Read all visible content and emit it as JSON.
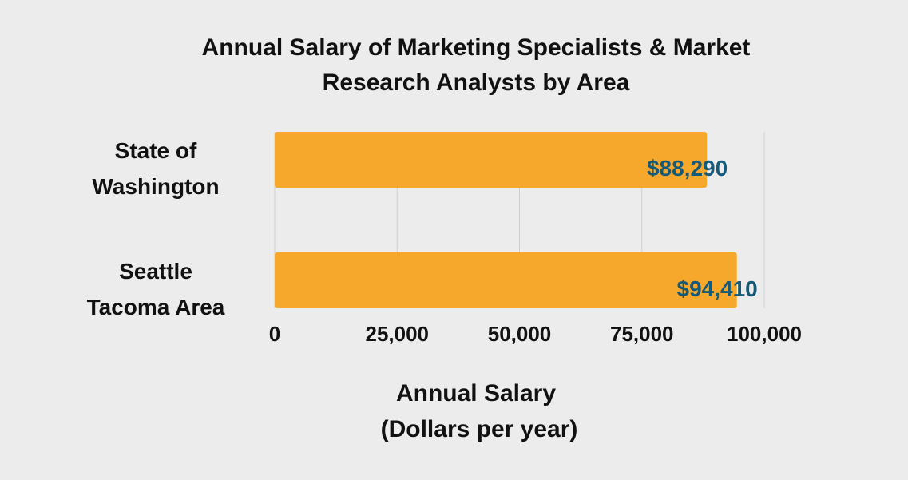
{
  "chart_data": {
    "type": "bar",
    "orientation": "horizontal",
    "title": [
      "Annual Salary of Marketing Specialists & Market",
      "Research Analysts by Area"
    ],
    "categories": [
      [
        "State of",
        "Washington"
      ],
      [
        "Seattle",
        "Tacoma Area"
      ]
    ],
    "values": [
      88290,
      94410
    ],
    "data_labels": [
      "$88,290",
      "$94,410"
    ],
    "xlabel": [
      "Annual Salary",
      "(Dollars per year)"
    ],
    "ylabel": "",
    "xlim": [
      0,
      100000
    ],
    "ticks": [
      0,
      25000,
      50000,
      75000,
      100000
    ],
    "tick_labels": [
      "0",
      "25,000",
      "50,000",
      "75,000",
      "100,000"
    ],
    "grid": "vertical",
    "legend": "none"
  },
  "colors": {
    "background": "#ececec",
    "bar": "#f6a82d",
    "data_label": "#155a78",
    "grid": "#d0d0d0",
    "text": "#111111"
  }
}
